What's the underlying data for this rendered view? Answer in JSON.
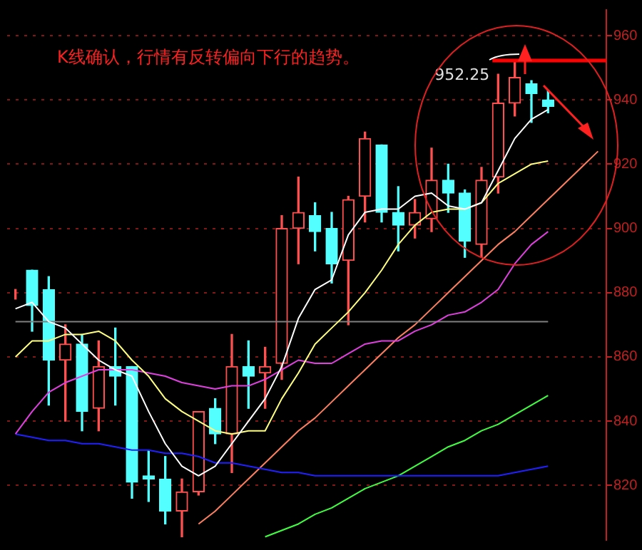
{
  "chart_data": {
    "type": "candlestick",
    "annotations": [
      "K线确认，行情有反转偏向下行的趋势。"
    ],
    "categories": [
      null,
      null,
      null,
      null,
      null,
      null,
      null,
      null,
      null,
      null,
      null,
      null,
      null,
      null,
      null,
      null,
      null,
      null,
      null,
      null,
      null,
      null,
      null,
      null,
      null,
      null,
      null,
      null,
      null,
      null,
      null,
      null,
      null,
      null,
      null,
      null
    ],
    "series": [
      {
        "ohlc": [
          [
            880,
            881,
            878,
            880
          ],
          [
            887,
            887,
            868,
            876
          ],
          [
            881,
            885,
            845,
            859
          ],
          [
            859,
            870,
            840,
            864
          ],
          [
            864,
            867,
            837,
            843
          ],
          [
            844,
            865,
            837,
            857
          ],
          [
            857,
            869,
            845,
            854
          ],
          [
            857,
            857,
            816,
            821
          ],
          [
            823,
            831,
            815,
            822
          ],
          [
            822,
            829,
            808,
            812
          ],
          [
            812,
            822,
            804,
            818
          ],
          [
            818,
            843,
            817,
            843
          ],
          [
            844,
            847,
            833,
            836
          ],
          [
            836,
            867,
            824,
            857
          ],
          [
            857,
            865,
            844,
            854
          ],
          [
            855,
            863,
            844,
            857
          ],
          [
            858,
            904,
            853,
            900
          ],
          [
            900,
            916,
            889,
            905
          ],
          [
            904,
            908,
            893,
            899
          ],
          [
            900,
            905,
            883,
            889
          ],
          [
            890,
            910,
            870,
            909
          ],
          [
            910,
            930,
            902,
            928
          ],
          [
            926,
            926,
            902,
            905
          ],
          [
            905,
            913,
            893,
            901
          ],
          [
            901,
            909,
            897,
            905
          ],
          [
            903,
            925,
            899,
            915
          ],
          [
            915,
            920,
            905,
            911
          ],
          [
            911,
            912,
            891,
            896
          ],
          [
            895,
            919,
            891,
            915
          ],
          [
            916,
            948,
            911,
            939
          ],
          [
            939,
            952.25,
            935,
            947
          ],
          [
            945,
            946,
            933,
            942
          ],
          [
            940,
            943,
            936,
            938
          ],
          null,
          null,
          null
        ],
        "colors": [
          "#ff5050",
          "#54ffff",
          "#54ffff",
          "#ff5050",
          "#54ffff",
          "#ff5050",
          "#54ffff",
          "#54ffff",
          "#54ffff",
          "#54ffff",
          "#ff5050",
          "#ff5050",
          "#54ffff",
          "#ff5050",
          "#54ffff",
          "#ff5050",
          "#ff5050",
          "#ff5050",
          "#54ffff",
          "#54ffff",
          "#ff5050",
          "#ff5050",
          "#54ffff",
          "#54ffff",
          "#ff5050",
          "#ff5050",
          "#54ffff",
          "#54ffff",
          "#ff5050",
          "#ff5050",
          "#ff5050",
          "#54ffff",
          "#54ffff",
          null,
          null,
          null
        ]
      },
      {
        "type": "line",
        "color": "#ffffff",
        "values": [
          875,
          877,
          871,
          869,
          864,
          859,
          856,
          854,
          843,
          833,
          826,
          823,
          826,
          833,
          840,
          847,
          857,
          872,
          881,
          884,
          898,
          905,
          906,
          906,
          910,
          911,
          907,
          906,
          908,
          918,
          928,
          934,
          937,
          null,
          null,
          null
        ]
      },
      {
        "type": "line",
        "color": "#ffff80",
        "values": [
          860,
          865,
          865,
          867,
          867,
          868,
          865,
          859,
          854,
          847,
          843,
          840,
          837,
          836,
          837,
          837,
          847,
          855,
          864,
          869,
          874,
          880,
          887,
          895,
          901,
          905,
          906,
          906,
          908,
          914,
          917,
          920,
          921,
          null,
          null,
          null
        ]
      },
      {
        "type": "line",
        "color": "#e040e0",
        "values": [
          836,
          843,
          849,
          852,
          854,
          856,
          856,
          856,
          855,
          854,
          852,
          851,
          850,
          851,
          851,
          853,
          856,
          859,
          858,
          858,
          861,
          864,
          865,
          865,
          868,
          870,
          873,
          874,
          877,
          881,
          889,
          895,
          899,
          null,
          null,
          null
        ]
      },
      {
        "type": "line",
        "color": "#2020ff",
        "values": [
          836,
          835,
          834,
          834,
          833,
          833,
          832,
          831,
          831,
          830,
          830,
          829,
          827,
          827,
          826,
          825,
          824,
          824,
          823,
          823,
          823,
          823,
          823,
          823,
          823,
          823,
          823,
          823,
          823,
          823,
          824,
          825,
          826,
          null,
          null,
          null
        ]
      },
      {
        "type": "line",
        "color": "#808080",
        "values": [
          871,
          871,
          871,
          871,
          871,
          871,
          871,
          871,
          871,
          871,
          871,
          871,
          871,
          871,
          871,
          871,
          871,
          871,
          871,
          871,
          871,
          871,
          871,
          871,
          871,
          871,
          871,
          871,
          871,
          871,
          871,
          871,
          871,
          null,
          null,
          null
        ]
      },
      {
        "type": "line",
        "color": "#40ff40",
        "values": [
          null,
          null,
          null,
          null,
          null,
          null,
          null,
          null,
          null,
          null,
          null,
          null,
          null,
          null,
          null,
          804,
          806,
          808,
          811,
          813,
          816,
          819,
          821,
          823,
          826,
          829,
          832,
          834,
          837,
          839,
          842,
          845,
          848,
          null,
          null,
          null
        ]
      },
      {
        "type": "line",
        "color": "#ff8060",
        "values": [
          null,
          null,
          null,
          null,
          null,
          null,
          null,
          null,
          null,
          null,
          null,
          808,
          812,
          817,
          822,
          827,
          832,
          837,
          841,
          846,
          851,
          856,
          861,
          866,
          870,
          875,
          880,
          885,
          890,
          895,
          899,
          904,
          909,
          914,
          919,
          924
        ]
      }
    ],
    "ylim": [
      803,
      968
    ],
    "yticks": [
      820,
      840,
      860,
      880,
      900,
      920,
      940,
      960
    ],
    "ref_lines": [
      {
        "axis": "y",
        "value": 952.25,
        "label": "952.25",
        "color": "#ff0000"
      }
    ],
    "grid": "y",
    "legend": false,
    "tick_labels": "y",
    "marker": "none"
  }
}
